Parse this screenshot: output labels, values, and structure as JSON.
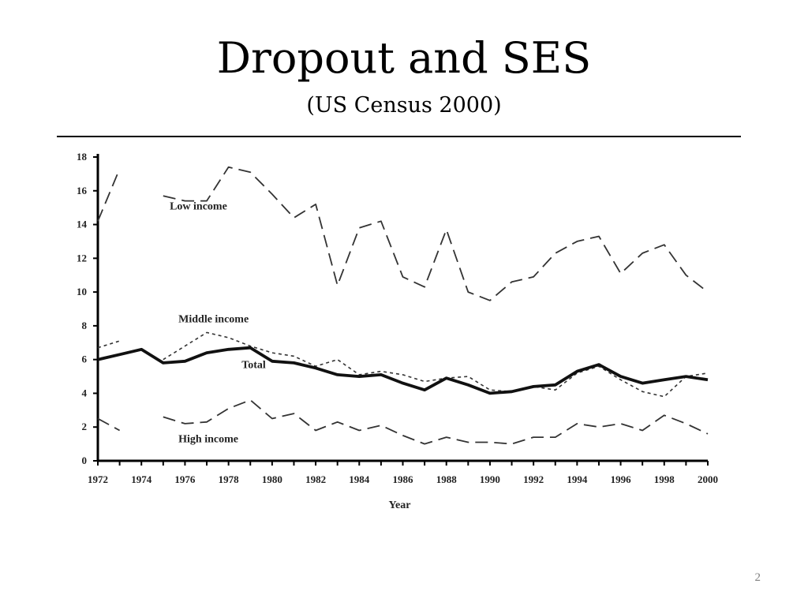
{
  "slide": {
    "title": "Dropout and SES",
    "subtitle": "(US Census 2000)",
    "page_number": "2"
  },
  "chart_data": {
    "type": "line",
    "xlabel": "Year",
    "ylabel": "",
    "xlim": [
      1972,
      2000
    ],
    "ylim": [
      0,
      18
    ],
    "x_ticks": [
      "1972",
      "1974",
      "1976",
      "1978",
      "1980",
      "1982",
      "1984",
      "1986",
      "1988",
      "1990",
      "1992",
      "1994",
      "1996",
      "1998",
      "2000"
    ],
    "y_ticks": [
      "0",
      "2",
      "4",
      "6",
      "8",
      "10",
      "12",
      "14",
      "16",
      "18"
    ],
    "grid": false,
    "legend": "none (series labeled inline)",
    "series": [
      {
        "name": "Low income",
        "style": "long-dash",
        "points": [
          [
            1972,
            14.2
          ],
          [
            1973,
            17.3
          ],
          [
            1975,
            15.7
          ],
          [
            1976,
            15.4
          ],
          [
            1977,
            15.4
          ],
          [
            1978,
            17.4
          ],
          [
            1979,
            17.1
          ],
          [
            1980,
            15.8
          ],
          [
            1981,
            14.4
          ],
          [
            1982,
            15.2
          ],
          [
            1983,
            10.4
          ],
          [
            1984,
            13.8
          ],
          [
            1985,
            14.2
          ],
          [
            1986,
            10.9
          ],
          [
            1987,
            10.3
          ],
          [
            1988,
            13.7
          ],
          [
            1989,
            10.0
          ],
          [
            1990,
            9.5
          ],
          [
            1991,
            10.6
          ],
          [
            1992,
            10.9
          ],
          [
            1993,
            12.3
          ],
          [
            1994,
            13.0
          ],
          [
            1995,
            13.3
          ],
          [
            1996,
            11.1
          ],
          [
            1997,
            12.3
          ],
          [
            1998,
            12.8
          ],
          [
            1999,
            11.0
          ],
          [
            2000,
            10.0
          ]
        ]
      },
      {
        "name": "Middle income",
        "style": "short-dash",
        "points": [
          [
            1972,
            6.7
          ],
          [
            1973,
            7.1
          ],
          [
            1975,
            6.0
          ],
          [
            1976,
            6.8
          ],
          [
            1977,
            7.6
          ],
          [
            1978,
            7.3
          ],
          [
            1979,
            6.8
          ],
          [
            1980,
            6.4
          ],
          [
            1981,
            6.2
          ],
          [
            1982,
            5.6
          ],
          [
            1983,
            6.0
          ],
          [
            1984,
            5.1
          ],
          [
            1985,
            5.3
          ],
          [
            1986,
            5.1
          ],
          [
            1987,
            4.7
          ],
          [
            1988,
            4.9
          ],
          [
            1989,
            5.0
          ],
          [
            1990,
            4.2
          ],
          [
            1991,
            4.1
          ],
          [
            1992,
            4.4
          ],
          [
            1993,
            4.2
          ],
          [
            1994,
            5.2
          ],
          [
            1995,
            5.6
          ],
          [
            1996,
            4.8
          ],
          [
            1997,
            4.1
          ],
          [
            1998,
            3.8
          ],
          [
            1999,
            5.0
          ],
          [
            2000,
            5.2
          ]
        ]
      },
      {
        "name": "Total",
        "style": "solid-bold",
        "points": [
          [
            1972,
            6.0
          ],
          [
            1973,
            6.3
          ],
          [
            1974,
            6.6
          ],
          [
            1975,
            5.8
          ],
          [
            1976,
            5.9
          ],
          [
            1977,
            6.4
          ],
          [
            1978,
            6.6
          ],
          [
            1979,
            6.7
          ],
          [
            1980,
            5.9
          ],
          [
            1981,
            5.8
          ],
          [
            1982,
            5.5
          ],
          [
            1983,
            5.1
          ],
          [
            1984,
            5.0
          ],
          [
            1985,
            5.1
          ],
          [
            1986,
            4.6
          ],
          [
            1987,
            4.2
          ],
          [
            1988,
            4.9
          ],
          [
            1989,
            4.5
          ],
          [
            1990,
            4.0
          ],
          [
            1991,
            4.1
          ],
          [
            1992,
            4.4
          ],
          [
            1993,
            4.5
          ],
          [
            1994,
            5.3
          ],
          [
            1995,
            5.7
          ],
          [
            1996,
            5.0
          ],
          [
            1997,
            4.6
          ],
          [
            1998,
            4.8
          ],
          [
            1999,
            5.0
          ],
          [
            2000,
            4.8
          ]
        ]
      },
      {
        "name": "High income",
        "style": "long-dash",
        "points": [
          [
            1972,
            2.5
          ],
          [
            1973,
            1.8
          ],
          [
            1975,
            2.6
          ],
          [
            1976,
            2.2
          ],
          [
            1977,
            2.3
          ],
          [
            1978,
            3.1
          ],
          [
            1979,
            3.6
          ],
          [
            1980,
            2.5
          ],
          [
            1981,
            2.8
          ],
          [
            1982,
            1.8
          ],
          [
            1983,
            2.3
          ],
          [
            1984,
            1.8
          ],
          [
            1985,
            2.1
          ],
          [
            1986,
            1.5
          ],
          [
            1987,
            1.0
          ],
          [
            1988,
            1.4
          ],
          [
            1989,
            1.1
          ],
          [
            1990,
            1.1
          ],
          [
            1991,
            1.0
          ],
          [
            1992,
            1.4
          ],
          [
            1993,
            1.4
          ],
          [
            1994,
            2.2
          ],
          [
            1995,
            2.0
          ],
          [
            1996,
            2.2
          ],
          [
            1997,
            1.8
          ],
          [
            1998,
            2.7
          ],
          [
            1999,
            2.2
          ],
          [
            2000,
            1.6
          ]
        ]
      }
    ]
  }
}
